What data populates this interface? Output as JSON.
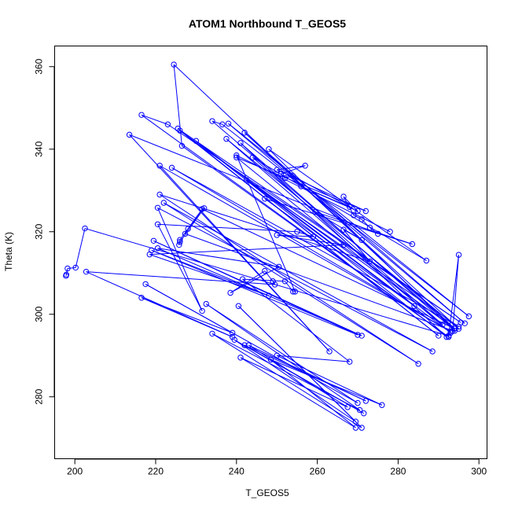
{
  "chart_data": {
    "type": "scatter",
    "title": "ATOM1 Northbound T_GEOS5",
    "xlabel": "T_GEOS5",
    "ylabel": "Theta (K)",
    "xlim": [
      195,
      302
    ],
    "ylim": [
      265,
      365
    ],
    "xticks": [
      "200",
      "220",
      "240",
      "260",
      "280",
      "300"
    ],
    "yticks": [
      "280",
      "300",
      "320",
      "340",
      "360"
    ],
    "grid": false,
    "legend": "none",
    "color": "#0000ff",
    "connect_points": true,
    "series": [
      {
        "points": [
          [
            197.8,
            309.3
          ],
          [
            197.9,
            309.6
          ],
          [
            198.2,
            311.1
          ],
          [
            200.2,
            311.3
          ],
          [
            202.5,
            320.8
          ],
          [
            292.5,
            294.8
          ],
          [
            295.0,
            314.4
          ],
          [
            293.5,
            296.0
          ],
          [
            227.3,
            319.5
          ],
          [
            228.0,
            320.7
          ],
          [
            232.0,
            325.7
          ],
          [
            226.0,
            317.5
          ],
          [
            225.8,
            316.8
          ],
          [
            226.0,
            318.0
          ],
          [
            231.5,
            325.5
          ],
          [
            294.0,
            296.5
          ],
          [
            224.5,
            360.5
          ],
          [
            226.5,
            340.8
          ],
          [
            292.5,
            294.5
          ],
          [
            216.5,
            348.3
          ],
          [
            223.0,
            346.0
          ],
          [
            295.5,
            298.0
          ],
          [
            225.5,
            345.0
          ],
          [
            290.0,
            294.8
          ],
          [
            226.0,
            344.5
          ],
          [
            294.0,
            296.5
          ],
          [
            234.0,
            346.8
          ],
          [
            236.5,
            346.0
          ],
          [
            297.5,
            299.5
          ],
          [
            238.0,
            346.2
          ],
          [
            296.5,
            297.8
          ],
          [
            242.0,
            344.0
          ],
          [
            295.0,
            296.5
          ],
          [
            237.5,
            342.5
          ],
          [
            293.0,
            295.5
          ],
          [
            230.0,
            342.0
          ],
          [
            292.0,
            294.5
          ],
          [
            241.0,
            341.5
          ],
          [
            294.0,
            296.0
          ],
          [
            248.0,
            340.0
          ],
          [
            287.0,
            313.0
          ],
          [
            244.0,
            338.0
          ],
          [
            291.0,
            297.5
          ],
          [
            240.0,
            338.0
          ],
          [
            272.0,
            325.0
          ],
          [
            250.0,
            335.0
          ],
          [
            257.0,
            336.0
          ],
          [
            251.0,
            334.0
          ],
          [
            252.0,
            333.0
          ],
          [
            254.0,
            333.5
          ],
          [
            268.0,
            326.0
          ],
          [
            256.0,
            331.0
          ],
          [
            270.0,
            325.0
          ],
          [
            266.5,
            328.5
          ],
          [
            269.0,
            324.0
          ],
          [
            271.0,
            323.0
          ],
          [
            273.0,
            321.0
          ],
          [
            275.0,
            319.5
          ],
          [
            213.5,
            343.5
          ],
          [
            263.0,
            291.0
          ],
          [
            221.0,
            336.0
          ],
          [
            293.0,
            295.8
          ],
          [
            224.0,
            335.5
          ],
          [
            295.0,
            297.0
          ],
          [
            242.5,
            332.5
          ],
          [
            284.0,
            302.0
          ],
          [
            247.0,
            328.0
          ],
          [
            283.5,
            317.0
          ],
          [
            259.5,
            324.8
          ],
          [
            271.0,
            318.0
          ],
          [
            266.5,
            320.5
          ],
          [
            273.0,
            312.8
          ],
          [
            221.0,
            329.0
          ],
          [
            285.0,
            288.0
          ],
          [
            222.0,
            327.0
          ],
          [
            288.5,
            291.0
          ],
          [
            220.5,
            325.8
          ],
          [
            231.5,
            300.8
          ],
          [
            220.5,
            321.8
          ],
          [
            255.0,
            320.0
          ],
          [
            259.0,
            318.8
          ],
          [
            250.0,
            319.2
          ],
          [
            266.5,
            316.8
          ],
          [
            218.5,
            314.5
          ],
          [
            248.0,
            304.5
          ],
          [
            219.0,
            315.5
          ],
          [
            270.0,
            295.0
          ],
          [
            219.5,
            317.8
          ],
          [
            271.0,
            294.8
          ],
          [
            220.5,
            316.0
          ],
          [
            250.5,
            311.5
          ],
          [
            238.5,
            305.2
          ],
          [
            247.0,
            310.5
          ],
          [
            249.0,
            308.0
          ],
          [
            249.5,
            307.2
          ],
          [
            202.8,
            310.3
          ],
          [
            239.0,
            294.5
          ],
          [
            216.5,
            304.0
          ],
          [
            239.0,
            295.5
          ],
          [
            217.5,
            307.3
          ],
          [
            270.0,
            278.5
          ],
          [
            232.5,
            302.5
          ],
          [
            270.5,
            276.8
          ],
          [
            234.0,
            295.3
          ],
          [
            271.0,
            272.5
          ],
          [
            240.5,
            302.0
          ],
          [
            269.5,
            274.0
          ],
          [
            239.5,
            293.8
          ],
          [
            271.5,
            276.0
          ],
          [
            242.0,
            292.5
          ],
          [
            272.0,
            279.0
          ],
          [
            243.0,
            292.5
          ],
          [
            267.5,
            277.5
          ],
          [
            241.0,
            289.5
          ],
          [
            269.5,
            272.5
          ],
          [
            248.5,
            289.0
          ],
          [
            276.0,
            278.0
          ],
          [
            250.0,
            290.0
          ],
          [
            268.0,
            288.5
          ],
          [
            241.5,
            308.5
          ],
          [
            252.0,
            308.0
          ],
          [
            254.0,
            305.5
          ],
          [
            254.5,
            305.5
          ],
          [
            240.0,
            338.5
          ],
          [
            278.0,
            320.0
          ]
        ]
      }
    ]
  }
}
